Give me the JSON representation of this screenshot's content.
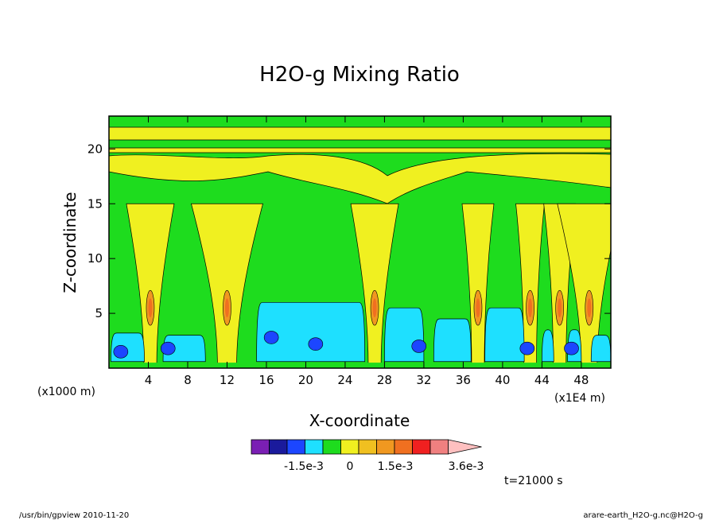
{
  "chart_data": {
    "type": "heatmap",
    "title": "H2O-g Mixing Ratio",
    "xlabel": "X-coordinate",
    "ylabel": "Z-coordinate",
    "x_unit_left": "(x1000 m)",
    "x_unit_right": "(x1E4 m)",
    "xlim": [
      0,
      51
    ],
    "ylim": [
      0,
      23
    ],
    "x_ticks": [
      4,
      8,
      12,
      16,
      20,
      24,
      28,
      32,
      36,
      40,
      44,
      48
    ],
    "y_ticks": [
      5,
      10,
      15,
      20
    ],
    "colorbar": {
      "colors": [
        "#7a1fb4",
        "#1a1a9c",
        "#1c46ff",
        "#1ee0ff",
        "#1edc1e",
        "#f0f020",
        "#f0c020",
        "#f09820",
        "#f07020",
        "#f02020",
        "#f08080",
        "#ffc0c0"
      ],
      "labels": [
        "-1.5e-3",
        "0",
        "1.5e-3",
        "3.6e-3"
      ]
    },
    "time_label": "t=21000 s",
    "footer_left": "/usr/bin/gpview   2010-11-20",
    "footer_right": "arare-earth_H2O-g.nc@H2O-g",
    "palette": {
      "green": "#1edc1e",
      "yellow": "#f0f020",
      "cyan": "#1ee0ff",
      "blue": "#1c46ff",
      "orange": "#f09820",
      "darkorange": "#f07020"
    }
  }
}
